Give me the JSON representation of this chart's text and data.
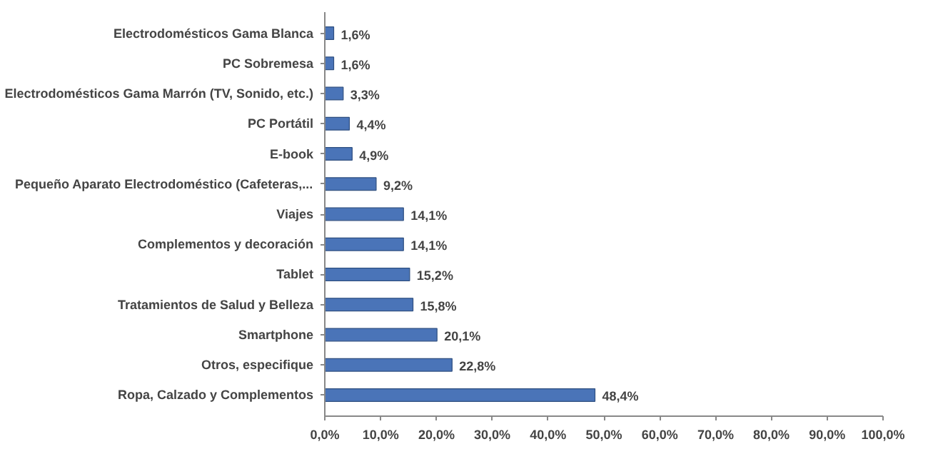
{
  "chart_data": {
    "type": "bar",
    "orientation": "horizontal",
    "categories": [
      "Electrodomésticos Gama Blanca",
      "PC Sobremesa",
      "Electrodomésticos Gama Marrón (TV, Sonido, etc.)",
      "PC Portátil",
      "E-book",
      "Pequeño Aparato Electrodoméstico (Cafeteras,...",
      "Viajes",
      "Complementos y decoración",
      "Tablet",
      "Tratamientos de Salud y Belleza",
      "Smartphone",
      "Otros, especifique",
      "Ropa, Calzado y Complementos"
    ],
    "values": [
      1.6,
      1.6,
      3.3,
      4.4,
      4.9,
      9.2,
      14.1,
      14.1,
      15.2,
      15.8,
      20.1,
      22.8,
      48.4
    ],
    "value_labels": [
      "1,6%",
      "1,6%",
      "3,3%",
      "4,4%",
      "4,9%",
      "9,2%",
      "14,1%",
      "14,1%",
      "15,2%",
      "15,8%",
      "20,1%",
      "22,8%",
      "48,4%"
    ],
    "color": "#4a74b8",
    "xlim": [
      0,
      100
    ],
    "xticks": [
      {
        "value": 0,
        "label": "0,0%"
      },
      {
        "value": 10,
        "label": "10,0%"
      },
      {
        "value": 20,
        "label": "20,0%"
      },
      {
        "value": 30,
        "label": "30,0%"
      },
      {
        "value": 40,
        "label": "40,0%"
      },
      {
        "value": 50,
        "label": "50,0%"
      },
      {
        "value": 60,
        "label": "60,0%"
      },
      {
        "value": 70,
        "label": "70,0%"
      },
      {
        "value": 80,
        "label": "80,0%"
      },
      {
        "value": 90,
        "label": "90,0%"
      },
      {
        "value": 100,
        "label": "100,0%"
      }
    ],
    "grid": false
  }
}
